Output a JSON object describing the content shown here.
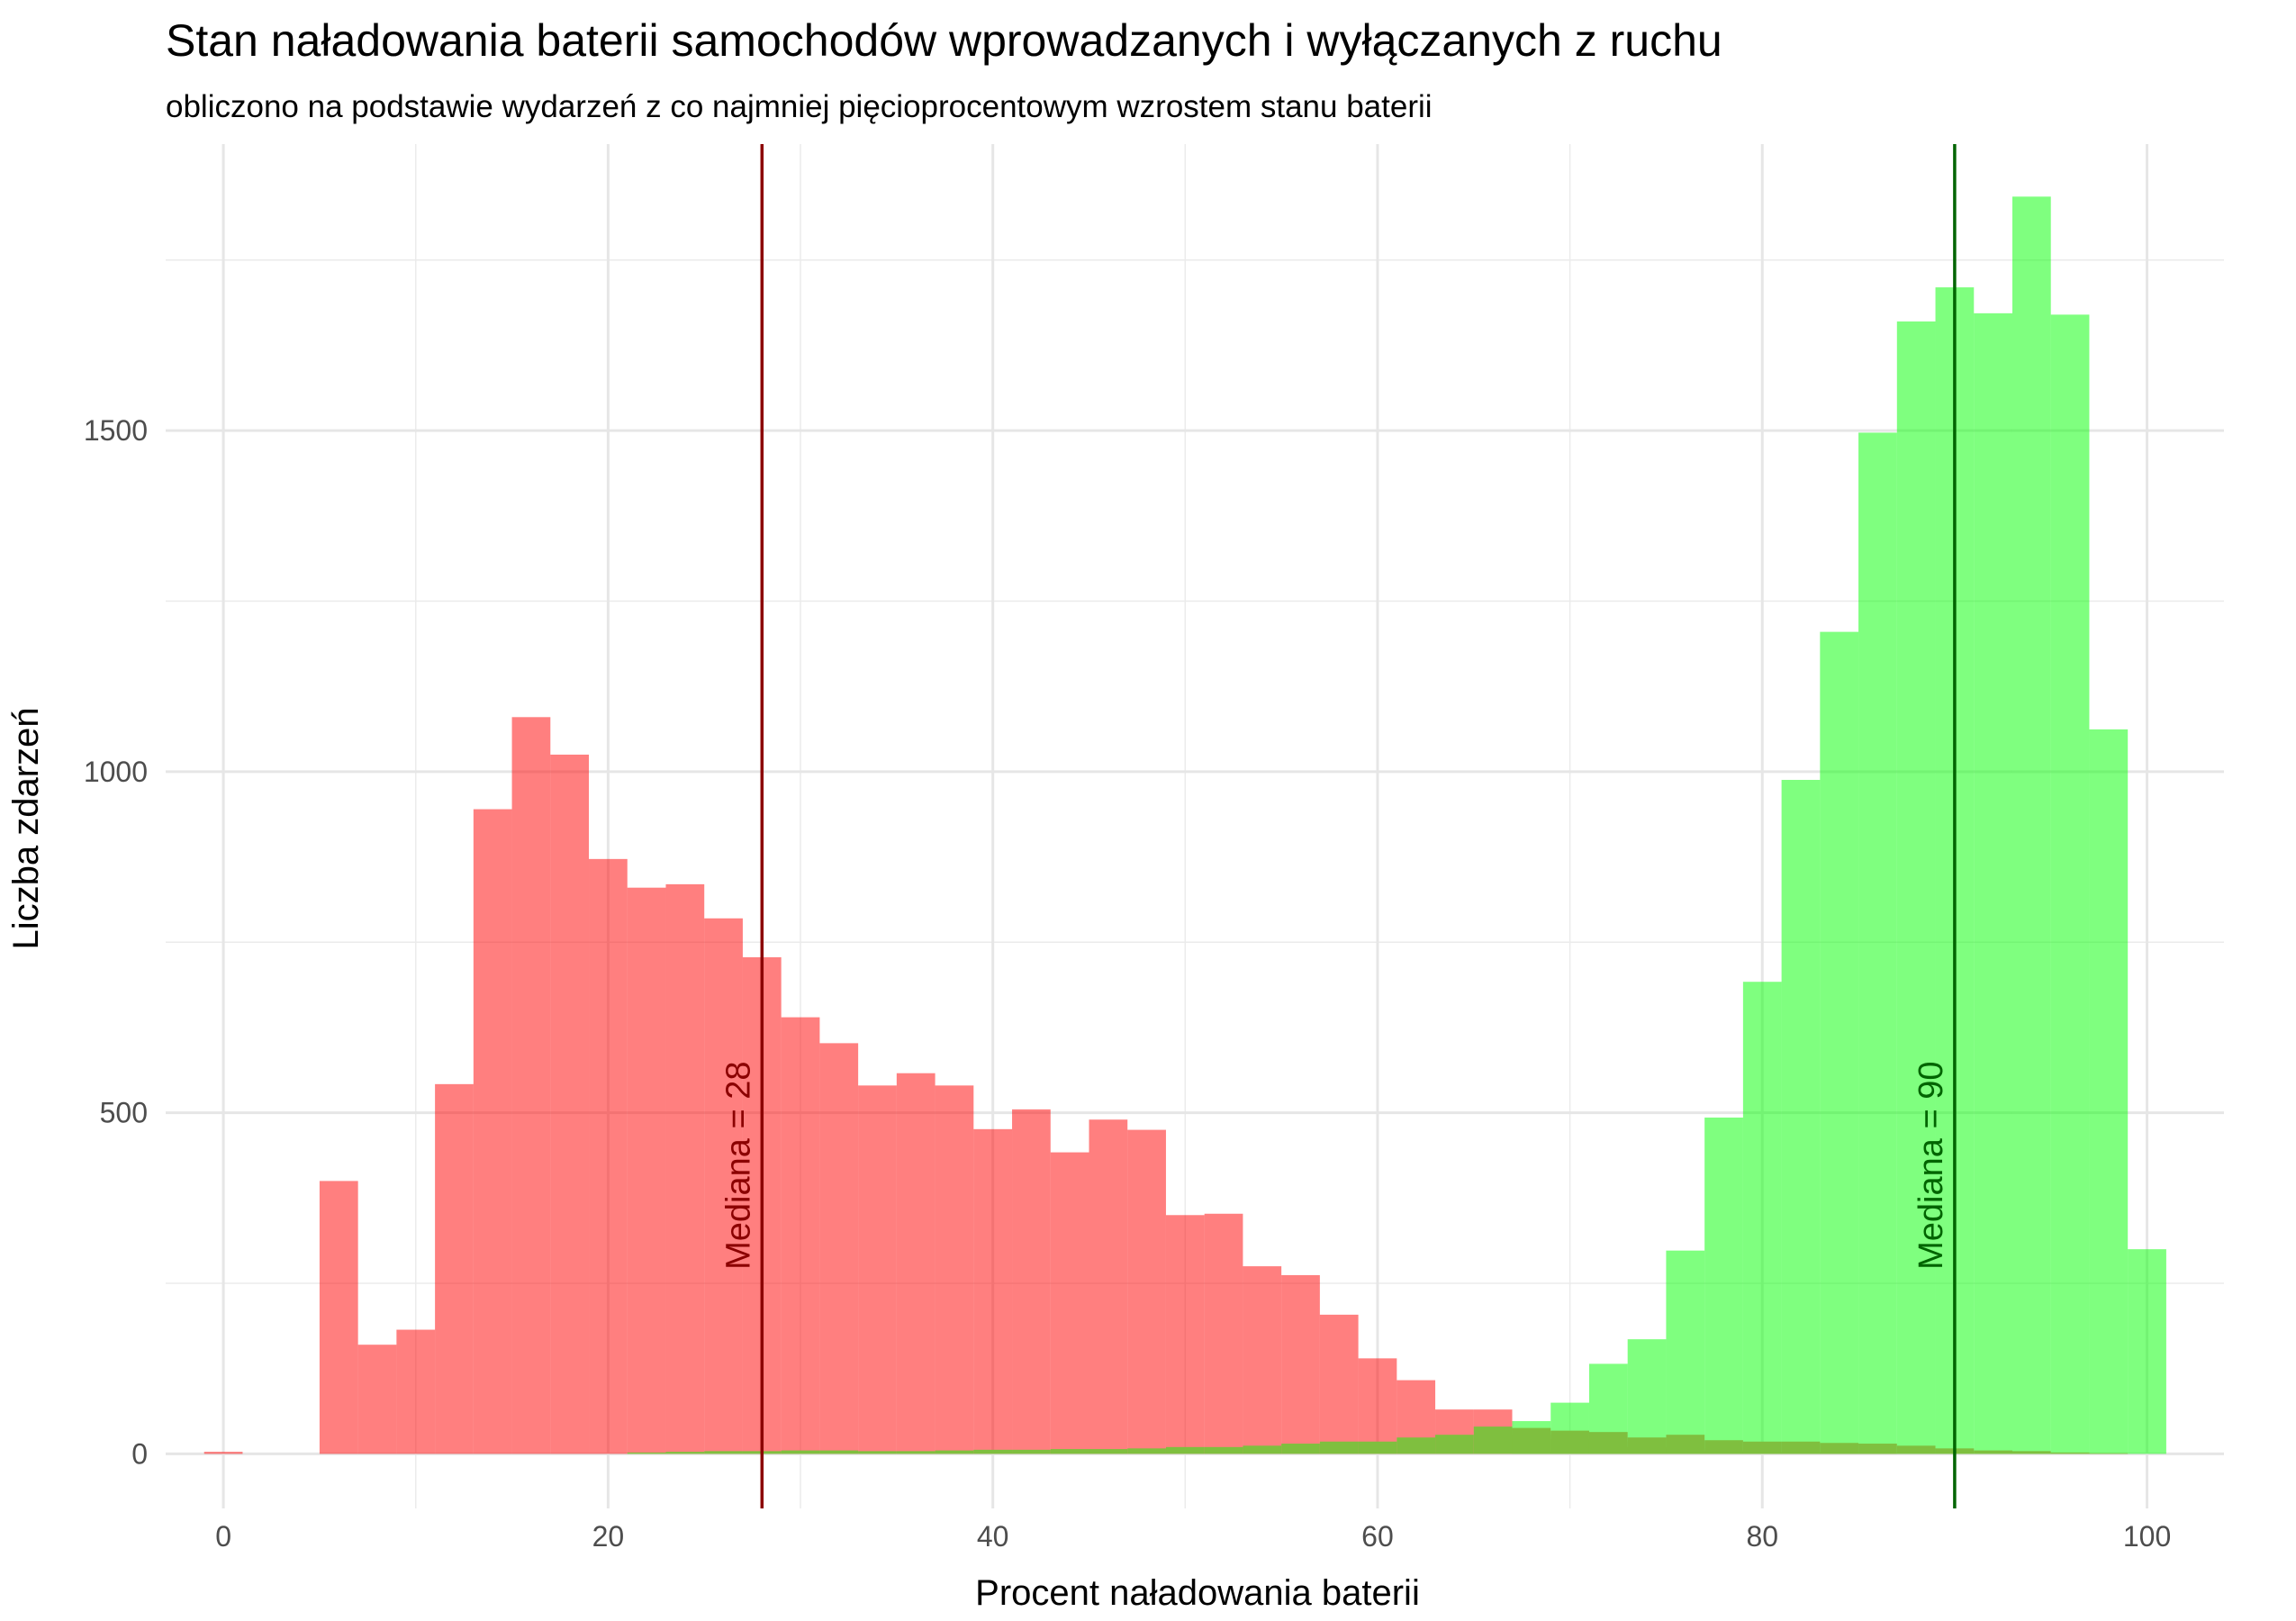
{
  "chart_data": {
    "type": "histogram",
    "title": "Stan naładowania baterii samochodów wprowadzanych i wyłączanych z ruchu",
    "subtitle": "obliczono na podstawie wydarzeń z co najmniej pięcioprocentowym wzrostem stanu baterii",
    "xlabel": "Procent naładowania baterii",
    "ylabel": "Liczba zdarzeń",
    "xlim": [
      -3,
      104
    ],
    "ylim": [
      -80,
      1920
    ],
    "x_ticks": [
      0,
      20,
      40,
      60,
      80,
      100
    ],
    "y_ticks": [
      0,
      500,
      1000,
      1500
    ],
    "grid": true,
    "bin_width": 2,
    "bin_centers": [
      0,
      2,
      4,
      6,
      8,
      10,
      12,
      14,
      16,
      18,
      20,
      22,
      24,
      26,
      28,
      30,
      32,
      34,
      36,
      38,
      40,
      42,
      44,
      46,
      48,
      50,
      52,
      54,
      56,
      58,
      60,
      62,
      64,
      66,
      68,
      70,
      72,
      74,
      76,
      78,
      80,
      82,
      84,
      86,
      88,
      90,
      92,
      94,
      96,
      98,
      100
    ],
    "series": [
      {
        "color": "#ff0000",
        "opacity": 0.5,
        "values": [
          3,
          0,
          0,
          400,
          160,
          182,
          542,
          945,
          1080,
          1025,
          872,
          830,
          835,
          785,
          728,
          640,
          602,
          540,
          558,
          540,
          476,
          505,
          442,
          490,
          475,
          350,
          352,
          275,
          262,
          204,
          140,
          108,
          65,
          65,
          28,
          22,
          18,
          10,
          8,
          5,
          3,
          2,
          1,
          1,
          0,
          0,
          0,
          0,
          0,
          0,
          0
        ]
      },
      {
        "color": "#00ff00",
        "opacity": 0.5,
        "values": [
          0,
          0,
          0,
          0,
          0,
          0,
          0,
          0,
          0,
          0,
          0,
          0,
          0,
          0,
          0,
          0,
          0,
          0,
          0,
          0,
          0,
          0,
          0,
          0,
          0,
          0,
          0,
          0,
          0,
          0,
          0,
          0,
          0,
          0,
          48,
          75,
          132,
          168,
          298,
          493,
          692,
          988,
          1205,
          1497,
          1660,
          1710,
          1672,
          1843,
          1670,
          1062,
          300
        ]
      },
      {
        "color": "#7fbf3f",
        "opacity": 1,
        "values": [
          0,
          0,
          0,
          0,
          0,
          0,
          0,
          0,
          0,
          0,
          0,
          2,
          3,
          4,
          4,
          5,
          5,
          4,
          4,
          5,
          6,
          6,
          7,
          7,
          8,
          10,
          10,
          12,
          15,
          18,
          18,
          24,
          28,
          40,
          38,
          34,
          32,
          24,
          28,
          20,
          18,
          18,
          16,
          15,
          12,
          8,
          5,
          4,
          2,
          1,
          0
        ]
      }
    ],
    "reference_lines": [
      {
        "x": 28,
        "color": "#8b0000",
        "label": "Mediana =  28"
      },
      {
        "x": 90,
        "color": "#006400",
        "label": "Mediana =  90"
      }
    ]
  }
}
